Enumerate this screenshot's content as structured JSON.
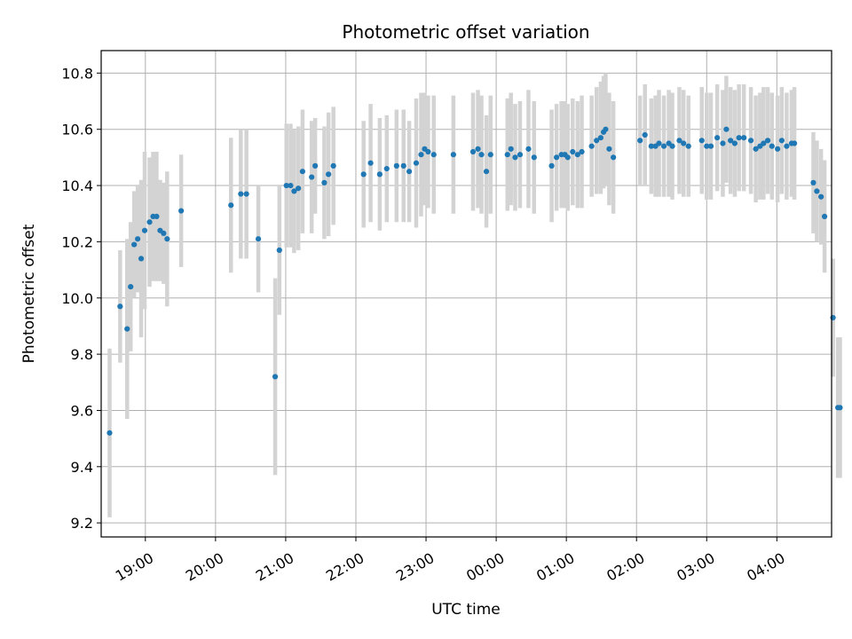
{
  "chart_data": {
    "type": "scatter",
    "title": "Photometric offset variation",
    "xlabel": "UTC time",
    "ylabel": "Photometric offset",
    "x_unit": "hours since 18:00 UTC",
    "xlim": [
      0.37,
      10.78
    ],
    "ylim": [
      9.15,
      10.88
    ],
    "x_ticks": [
      {
        "value": 1,
        "label": "19:00"
      },
      {
        "value": 2,
        "label": "20:00"
      },
      {
        "value": 3,
        "label": "21:00"
      },
      {
        "value": 4,
        "label": "22:00"
      },
      {
        "value": 5,
        "label": "23:00"
      },
      {
        "value": 6,
        "label": "00:00"
      },
      {
        "value": 7,
        "label": "01:00"
      },
      {
        "value": 8,
        "label": "02:00"
      },
      {
        "value": 9,
        "label": "03:00"
      },
      {
        "value": 10,
        "label": "04:00"
      }
    ],
    "y_ticks": [
      {
        "value": 9.2,
        "label": "9.2"
      },
      {
        "value": 9.4,
        "label": "9.4"
      },
      {
        "value": 9.6,
        "label": "9.6"
      },
      {
        "value": 9.8,
        "label": "9.8"
      },
      {
        "value": 10.0,
        "label": "10.0"
      },
      {
        "value": 10.2,
        "label": "10.2"
      },
      {
        "value": 10.4,
        "label": "10.4"
      },
      {
        "value": 10.6,
        "label": "10.6"
      },
      {
        "value": 10.8,
        "label": "10.8"
      }
    ],
    "grid": true,
    "marker_color": "#1f77b4",
    "errorbar_color": "#d3d3d3",
    "series": [
      {
        "name": "offset",
        "points": [
          [
            0.49,
            9.52,
            0.3
          ],
          [
            0.64,
            9.97,
            0.2
          ],
          [
            0.74,
            9.89,
            0.32
          ],
          [
            0.79,
            10.04,
            0.23
          ],
          [
            0.84,
            10.19,
            0.19
          ],
          [
            0.89,
            10.21,
            0.19
          ],
          [
            0.94,
            10.14,
            0.28
          ],
          [
            0.99,
            10.24,
            0.28
          ],
          [
            1.06,
            10.27,
            0.23
          ],
          [
            1.11,
            10.29,
            0.23
          ],
          [
            1.16,
            10.29,
            0.23
          ],
          [
            1.21,
            10.24,
            0.18
          ],
          [
            1.26,
            10.23,
            0.18
          ],
          [
            1.31,
            10.21,
            0.24
          ],
          [
            1.51,
            10.31,
            0.2
          ],
          [
            2.22,
            10.33,
            0.24
          ],
          [
            2.36,
            10.37,
            0.23
          ],
          [
            2.44,
            10.37,
            0.23
          ],
          [
            2.61,
            10.21,
            0.19
          ],
          [
            2.85,
            9.72,
            0.35
          ],
          [
            2.91,
            10.17,
            0.23
          ],
          [
            3.01,
            10.4,
            0.22
          ],
          [
            3.07,
            10.4,
            0.22
          ],
          [
            3.12,
            10.38,
            0.22
          ],
          [
            3.18,
            10.39,
            0.22
          ],
          [
            3.24,
            10.45,
            0.22
          ],
          [
            3.37,
            10.43,
            0.2
          ],
          [
            3.42,
            10.47,
            0.17
          ],
          [
            3.55,
            10.41,
            0.2
          ],
          [
            3.61,
            10.44,
            0.22
          ],
          [
            3.68,
            10.47,
            0.21
          ],
          [
            4.11,
            10.44,
            0.19
          ],
          [
            4.21,
            10.48,
            0.21
          ],
          [
            4.34,
            10.44,
            0.2
          ],
          [
            4.44,
            10.46,
            0.19
          ],
          [
            4.58,
            10.47,
            0.2
          ],
          [
            4.68,
            10.47,
            0.2
          ],
          [
            4.76,
            10.45,
            0.18
          ],
          [
            4.86,
            10.48,
            0.23
          ],
          [
            4.93,
            10.51,
            0.22
          ],
          [
            4.98,
            10.53,
            0.2
          ],
          [
            5.03,
            10.52,
            0.2
          ],
          [
            5.11,
            10.51,
            0.21
          ],
          [
            5.39,
            10.51,
            0.21
          ],
          [
            5.67,
            10.52,
            0.21
          ],
          [
            5.74,
            10.53,
            0.21
          ],
          [
            5.79,
            10.51,
            0.21
          ],
          [
            5.86,
            10.45,
            0.2
          ],
          [
            5.92,
            10.51,
            0.21
          ],
          [
            6.16,
            10.51,
            0.2
          ],
          [
            6.21,
            10.53,
            0.2
          ],
          [
            6.27,
            10.5,
            0.19
          ],
          [
            6.34,
            10.51,
            0.19
          ],
          [
            6.46,
            10.53,
            0.21
          ],
          [
            6.54,
            10.5,
            0.2
          ],
          [
            6.79,
            10.47,
            0.2
          ],
          [
            6.86,
            10.5,
            0.19
          ],
          [
            6.93,
            10.51,
            0.19
          ],
          [
            6.98,
            10.51,
            0.19
          ],
          [
            7.02,
            10.5,
            0.19
          ],
          [
            7.09,
            10.52,
            0.19
          ],
          [
            7.16,
            10.51,
            0.19
          ],
          [
            7.22,
            10.52,
            0.2
          ],
          [
            7.36,
            10.54,
            0.18
          ],
          [
            7.43,
            10.56,
            0.19
          ],
          [
            7.49,
            10.57,
            0.2
          ],
          [
            7.53,
            10.59,
            0.2
          ],
          [
            7.56,
            10.6,
            0.2
          ],
          [
            7.61,
            10.53,
            0.2
          ],
          [
            7.67,
            10.5,
            0.2
          ],
          [
            8.05,
            10.56,
            0.16
          ],
          [
            8.12,
            10.58,
            0.18
          ],
          [
            8.21,
            10.54,
            0.17
          ],
          [
            8.27,
            10.54,
            0.18
          ],
          [
            8.32,
            10.55,
            0.19
          ],
          [
            8.39,
            10.54,
            0.18
          ],
          [
            8.46,
            10.55,
            0.19
          ],
          [
            8.51,
            10.54,
            0.19
          ],
          [
            8.61,
            10.56,
            0.19
          ],
          [
            8.67,
            10.55,
            0.19
          ],
          [
            8.74,
            10.54,
            0.18
          ],
          [
            8.93,
            10.56,
            0.19
          ],
          [
            9.0,
            10.54,
            0.19
          ],
          [
            9.06,
            10.54,
            0.19
          ],
          [
            9.15,
            10.57,
            0.19
          ],
          [
            9.23,
            10.55,
            0.19
          ],
          [
            9.28,
            10.6,
            0.19
          ],
          [
            9.34,
            10.56,
            0.19
          ],
          [
            9.4,
            10.55,
            0.19
          ],
          [
            9.46,
            10.57,
            0.19
          ],
          [
            9.53,
            10.57,
            0.19
          ],
          [
            9.63,
            10.56,
            0.19
          ],
          [
            9.7,
            10.53,
            0.19
          ],
          [
            9.76,
            10.54,
            0.19
          ],
          [
            9.81,
            10.55,
            0.2
          ],
          [
            9.87,
            10.56,
            0.19
          ],
          [
            9.93,
            10.54,
            0.19
          ],
          [
            10.01,
            10.53,
            0.19
          ],
          [
            10.07,
            10.56,
            0.19
          ],
          [
            10.14,
            10.54,
            0.19
          ],
          [
            10.21,
            10.55,
            0.19
          ],
          [
            10.25,
            10.55,
            0.2
          ],
          [
            10.52,
            10.41,
            0.18
          ],
          [
            10.57,
            10.38,
            0.18
          ],
          [
            10.63,
            10.36,
            0.17
          ],
          [
            10.68,
            10.29,
            0.2
          ],
          [
            10.8,
            9.93,
            0.21
          ],
          [
            10.87,
            9.61,
            0.25
          ],
          [
            10.9,
            9.61,
            0.25
          ]
        ]
      }
    ]
  }
}
